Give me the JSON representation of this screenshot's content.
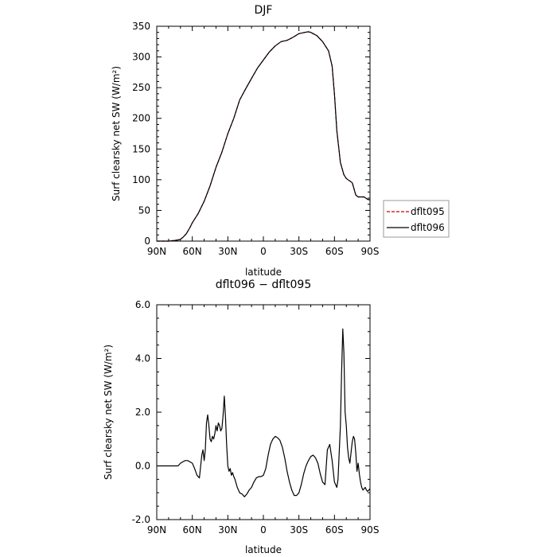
{
  "chart_data": [
    {
      "type": "line",
      "title": "DJF",
      "xlabel": "latitude",
      "ylabel": "Surf clearsky net SW (W/m²)",
      "x_ticks": [
        "90N",
        "60N",
        "30N",
        "0",
        "30S",
        "60S",
        "90S"
      ],
      "y_ticks": [
        "0",
        "50",
        "100",
        "150",
        "200",
        "250",
        "300",
        "350"
      ],
      "xlim": [
        90,
        -90
      ],
      "ylim": [
        0,
        350
      ],
      "grid": false,
      "legend_position": "outside-right",
      "series": [
        {
          "name": "dflt095",
          "color": "#cc0000",
          "style": "dashed",
          "x": [
            90,
            80,
            75,
            72,
            70,
            68,
            65,
            62,
            60,
            55,
            50,
            45,
            40,
            35,
            30,
            25,
            20,
            15,
            10,
            5,
            0,
            -5,
            -10,
            -15,
            -20,
            -25,
            -30,
            -35,
            -38,
            -40,
            -42,
            -45,
            -50,
            -55,
            -58,
            -60,
            -62,
            -65,
            -68,
            -70,
            -75,
            -78,
            -80,
            -85,
            -88,
            -90
          ],
          "y": [
            0,
            0,
            1,
            2,
            3,
            6,
            12,
            22,
            30,
            45,
            65,
            90,
            120,
            145,
            175,
            200,
            230,
            248,
            265,
            282,
            295,
            308,
            318,
            325,
            327,
            332,
            338,
            340,
            341,
            340,
            338,
            335,
            325,
            310,
            285,
            240,
            180,
            128,
            108,
            102,
            95,
            75,
            72,
            72,
            68,
            67
          ]
        },
        {
          "name": "dflt096",
          "color": "#000000",
          "style": "solid",
          "x": [
            90,
            80,
            75,
            72,
            70,
            68,
            65,
            62,
            60,
            55,
            50,
            45,
            40,
            35,
            30,
            25,
            20,
            15,
            10,
            5,
            0,
            -5,
            -10,
            -15,
            -20,
            -25,
            -30,
            -35,
            -38,
            -40,
            -42,
            -45,
            -50,
            -55,
            -58,
            -60,
            -62,
            -65,
            -68,
            -70,
            -75,
            -78,
            -80,
            -85,
            -88,
            -90
          ],
          "y": [
            0,
            0,
            1,
            2,
            3,
            6,
            12,
            22,
            30,
            45,
            65,
            90,
            120,
            145,
            175,
            200,
            230,
            248,
            265,
            282,
            295,
            308,
            318,
            325,
            327,
            332,
            338,
            340,
            341,
            340,
            338,
            335,
            325,
            310,
            285,
            240,
            180,
            128,
            108,
            102,
            95,
            75,
            72,
            72,
            68,
            67
          ]
        }
      ]
    },
    {
      "type": "line",
      "title": "dflt096 − dflt095",
      "xlabel": "latitude",
      "ylabel": "Surf clearsky net SW (W/m²)",
      "x_ticks": [
        "90N",
        "60N",
        "30N",
        "0",
        "30S",
        "60S",
        "90S"
      ],
      "y_ticks": [
        "-2.0",
        "0.0",
        "2.0",
        "4.0",
        "6.0"
      ],
      "xlim": [
        90,
        -90
      ],
      "ylim": [
        -2,
        6
      ],
      "grid": false,
      "series": [
        {
          "color": "#000000",
          "style": "solid",
          "x": [
            90,
            80,
            75,
            72,
            70,
            68,
            66,
            64,
            62,
            60,
            58,
            56,
            54,
            52,
            51,
            50,
            49,
            48,
            47,
            46,
            45,
            44,
            43,
            42,
            41,
            40,
            39,
            38,
            37,
            36,
            35,
            34,
            33,
            32,
            31,
            30,
            29,
            28,
            27,
            26,
            25,
            24,
            22,
            20,
            18,
            16,
            14,
            12,
            10,
            8,
            6,
            4,
            2,
            0,
            -2,
            -4,
            -6,
            -8,
            -10,
            -12,
            -14,
            -16,
            -18,
            -20,
            -22,
            -24,
            -26,
            -28,
            -30,
            -32,
            -34,
            -36,
            -38,
            -40,
            -42,
            -44,
            -46,
            -48,
            -50,
            -52,
            -54,
            -56,
            -58,
            -60,
            -62,
            -63,
            -64,
            -65,
            -66,
            -67,
            -68,
            -69,
            -70,
            -71,
            -72,
            -73,
            -74,
            -75,
            -76,
            -77,
            -78,
            -79,
            -80,
            -81,
            -82,
            -83,
            -84,
            -85,
            -86,
            -87,
            -88,
            -89,
            -90
          ],
          "y": [
            0,
            0,
            0,
            0,
            0.1,
            0.15,
            0.2,
            0.2,
            0.15,
            0.1,
            -0.1,
            -0.35,
            -0.45,
            0.4,
            0.6,
            0.2,
            0.6,
            1.6,
            1.9,
            1.5,
            1.0,
            0.9,
            1.1,
            1.0,
            1.2,
            1.5,
            1.3,
            1.6,
            1.5,
            1.3,
            1.4,
            1.9,
            2.6,
            1.8,
            0.8,
            0.0,
            -0.2,
            -0.1,
            -0.35,
            -0.25,
            -0.4,
            -0.5,
            -0.8,
            -1.0,
            -1.05,
            -1.15,
            -1.05,
            -0.9,
            -0.8,
            -0.6,
            -0.45,
            -0.4,
            -0.4,
            -0.35,
            -0.1,
            0.4,
            0.8,
            1.0,
            1.1,
            1.05,
            0.95,
            0.7,
            0.3,
            -0.2,
            -0.6,
            -0.9,
            -1.1,
            -1.1,
            -1.0,
            -0.7,
            -0.3,
            0.0,
            0.2,
            0.35,
            0.4,
            0.3,
            0.1,
            -0.3,
            -0.6,
            -0.7,
            0.6,
            0.8,
            0.2,
            -0.6,
            -0.8,
            -0.5,
            0.5,
            1.5,
            3.5,
            5.1,
            4.2,
            2.0,
            1.5,
            0.7,
            0.3,
            0.1,
            0.5,
            0.9,
            1.1,
            1.0,
            0.5,
            -0.2,
            0.1,
            -0.3,
            -0.6,
            -0.8,
            -0.9,
            -0.85,
            -0.8,
            -0.9,
            -0.95,
            -0.9,
            -0.85
          ]
        }
      ]
    }
  ]
}
